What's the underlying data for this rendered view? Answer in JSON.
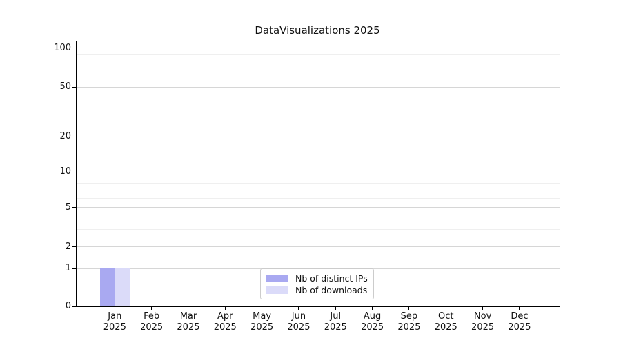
{
  "title": "DataVisualizations 2025",
  "chart_data": {
    "type": "bar",
    "title": "DataVisualizations 2025",
    "categories": [
      "Jan 2025",
      "Feb 2025",
      "Mar 2025",
      "Apr 2025",
      "May 2025",
      "Jun 2025",
      "Jul 2025",
      "Aug 2025",
      "Sep 2025",
      "Oct 2025",
      "Nov 2025",
      "Dec 2025"
    ],
    "series": [
      {
        "name": "Nb of distinct IPs",
        "color": "#a9a9f1",
        "values": [
          1,
          0,
          0,
          0,
          0,
          0,
          0,
          0,
          0,
          0,
          0,
          0
        ]
      },
      {
        "name": "Nb of downloads",
        "color": "#dbdbf9",
        "values": [
          1,
          0,
          0,
          0,
          0,
          0,
          0,
          0,
          0,
          0,
          0,
          0
        ]
      }
    ],
    "xlabel": "",
    "ylabel": "",
    "y_axis": {
      "scale": "symlog",
      "range": [
        0,
        100
      ],
      "major_ticks": [
        0,
        1,
        2,
        5,
        10,
        20,
        50,
        100
      ],
      "minor_ticks": [
        3,
        4,
        6,
        7,
        8,
        9,
        30,
        40,
        60,
        70,
        80,
        90
      ]
    },
    "grid": "both",
    "legend_position": "lower center"
  },
  "colors": {
    "spine": "#000000",
    "grid_major": "#d6d6d6",
    "grid_minor": "#efefef",
    "grid_top_major": "#b9b9b9",
    "legend_border": "#cccccc",
    "text": "#111111"
  }
}
